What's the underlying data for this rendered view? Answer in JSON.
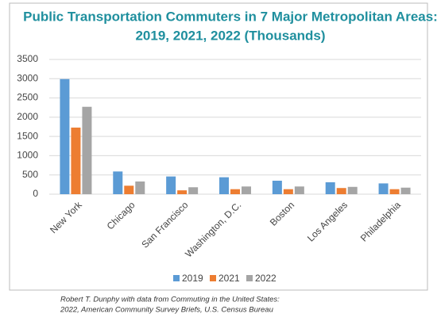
{
  "chart_data": {
    "type": "bar",
    "title": [
      "Public Transportation Commuters in 7 Major Metropolitan Areas:",
      "2019, 2021, 2022 (Thousands)"
    ],
    "categories": [
      "New York",
      "Chicago",
      "San Francisco",
      "Washington, D.C.",
      "Boston",
      "Los Angeles",
      "Philadelphia"
    ],
    "series": [
      {
        "name": "2019",
        "color": "#5b9bd5",
        "values": [
          2990,
          590,
          460,
          440,
          350,
          310,
          280
        ]
      },
      {
        "name": "2021",
        "color": "#ed7d31",
        "values": [
          1730,
          220,
          100,
          130,
          130,
          160,
          130
        ]
      },
      {
        "name": "2022",
        "color": "#a5a5a5",
        "values": [
          2270,
          330,
          180,
          200,
          200,
          190,
          170
        ]
      }
    ],
    "ylim": [
      0,
      3500
    ],
    "yticks": [
      0,
      500,
      1000,
      1500,
      2000,
      2500,
      3000,
      3500
    ],
    "grid": true,
    "legend": "bottom",
    "source": [
      "Robert T. Dunphy with data from Commuting in the United States:",
      "2022, American Community Survey Briefs, U.S. Census Bureau"
    ]
  }
}
